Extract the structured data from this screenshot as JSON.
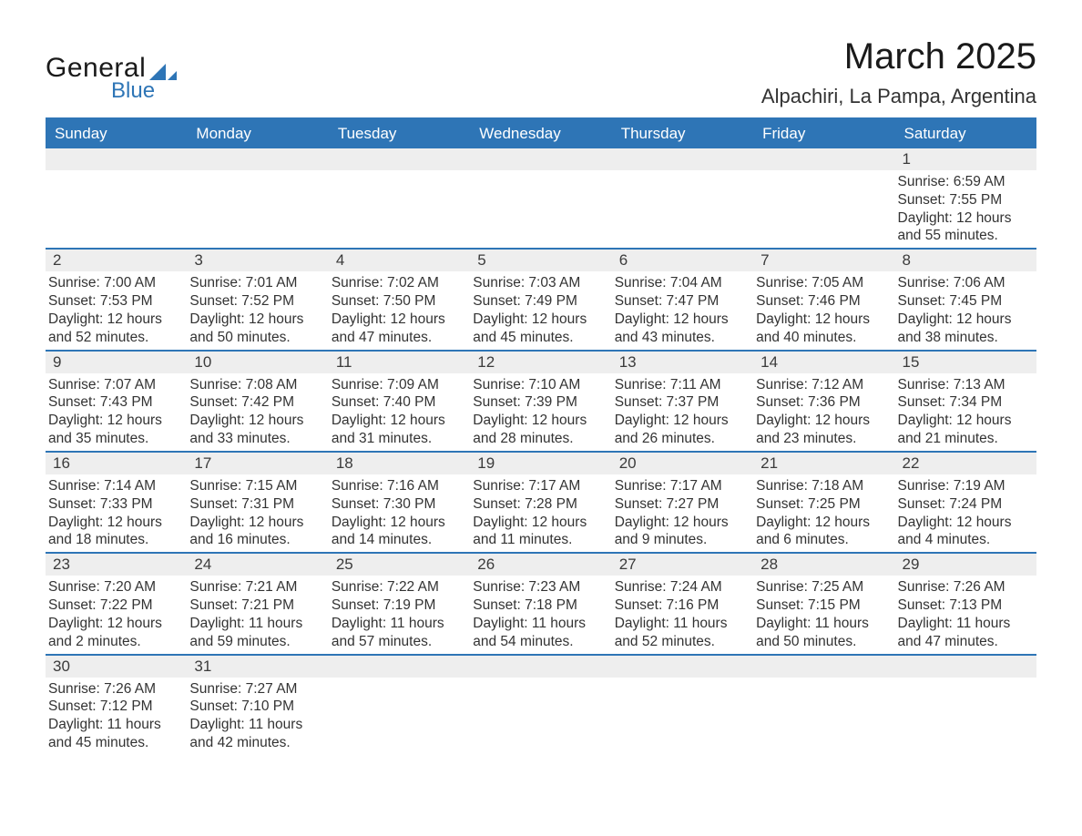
{
  "logo": {
    "text_general": "General",
    "text_blue": "Blue",
    "color_general": "#1a1a1a",
    "color_blue": "#2e75b6"
  },
  "header": {
    "month_title": "March 2025",
    "location": "Alpachiri, La Pampa, Argentina"
  },
  "styling": {
    "header_bg": "#2e75b6",
    "header_text": "#ffffff",
    "daynum_bg": "#eeeeee",
    "row_border": "#2e75b6",
    "body_text": "#333333",
    "page_bg": "#ffffff",
    "title_fontsize": 40,
    "location_fontsize": 22,
    "weekday_fontsize": 17,
    "body_fontsize": 15.5
  },
  "weekdays": [
    "Sunday",
    "Monday",
    "Tuesday",
    "Wednesday",
    "Thursday",
    "Friday",
    "Saturday"
  ],
  "weeks": [
    [
      {
        "empty": true
      },
      {
        "empty": true
      },
      {
        "empty": true
      },
      {
        "empty": true
      },
      {
        "empty": true
      },
      {
        "empty": true
      },
      {
        "num": "1",
        "sunrise": "Sunrise: 6:59 AM",
        "sunset": "Sunset: 7:55 PM",
        "daylight": "Daylight: 12 hours and 55 minutes."
      }
    ],
    [
      {
        "num": "2",
        "sunrise": "Sunrise: 7:00 AM",
        "sunset": "Sunset: 7:53 PM",
        "daylight": "Daylight: 12 hours and 52 minutes."
      },
      {
        "num": "3",
        "sunrise": "Sunrise: 7:01 AM",
        "sunset": "Sunset: 7:52 PM",
        "daylight": "Daylight: 12 hours and 50 minutes."
      },
      {
        "num": "4",
        "sunrise": "Sunrise: 7:02 AM",
        "sunset": "Sunset: 7:50 PM",
        "daylight": "Daylight: 12 hours and 47 minutes."
      },
      {
        "num": "5",
        "sunrise": "Sunrise: 7:03 AM",
        "sunset": "Sunset: 7:49 PM",
        "daylight": "Daylight: 12 hours and 45 minutes."
      },
      {
        "num": "6",
        "sunrise": "Sunrise: 7:04 AM",
        "sunset": "Sunset: 7:47 PM",
        "daylight": "Daylight: 12 hours and 43 minutes."
      },
      {
        "num": "7",
        "sunrise": "Sunrise: 7:05 AM",
        "sunset": "Sunset: 7:46 PM",
        "daylight": "Daylight: 12 hours and 40 minutes."
      },
      {
        "num": "8",
        "sunrise": "Sunrise: 7:06 AM",
        "sunset": "Sunset: 7:45 PM",
        "daylight": "Daylight: 12 hours and 38 minutes."
      }
    ],
    [
      {
        "num": "9",
        "sunrise": "Sunrise: 7:07 AM",
        "sunset": "Sunset: 7:43 PM",
        "daylight": "Daylight: 12 hours and 35 minutes."
      },
      {
        "num": "10",
        "sunrise": "Sunrise: 7:08 AM",
        "sunset": "Sunset: 7:42 PM",
        "daylight": "Daylight: 12 hours and 33 minutes."
      },
      {
        "num": "11",
        "sunrise": "Sunrise: 7:09 AM",
        "sunset": "Sunset: 7:40 PM",
        "daylight": "Daylight: 12 hours and 31 minutes."
      },
      {
        "num": "12",
        "sunrise": "Sunrise: 7:10 AM",
        "sunset": "Sunset: 7:39 PM",
        "daylight": "Daylight: 12 hours and 28 minutes."
      },
      {
        "num": "13",
        "sunrise": "Sunrise: 7:11 AM",
        "sunset": "Sunset: 7:37 PM",
        "daylight": "Daylight: 12 hours and 26 minutes."
      },
      {
        "num": "14",
        "sunrise": "Sunrise: 7:12 AM",
        "sunset": "Sunset: 7:36 PM",
        "daylight": "Daylight: 12 hours and 23 minutes."
      },
      {
        "num": "15",
        "sunrise": "Sunrise: 7:13 AM",
        "sunset": "Sunset: 7:34 PM",
        "daylight": "Daylight: 12 hours and 21 minutes."
      }
    ],
    [
      {
        "num": "16",
        "sunrise": "Sunrise: 7:14 AM",
        "sunset": "Sunset: 7:33 PM",
        "daylight": "Daylight: 12 hours and 18 minutes."
      },
      {
        "num": "17",
        "sunrise": "Sunrise: 7:15 AM",
        "sunset": "Sunset: 7:31 PM",
        "daylight": "Daylight: 12 hours and 16 minutes."
      },
      {
        "num": "18",
        "sunrise": "Sunrise: 7:16 AM",
        "sunset": "Sunset: 7:30 PM",
        "daylight": "Daylight: 12 hours and 14 minutes."
      },
      {
        "num": "19",
        "sunrise": "Sunrise: 7:17 AM",
        "sunset": "Sunset: 7:28 PM",
        "daylight": "Daylight: 12 hours and 11 minutes."
      },
      {
        "num": "20",
        "sunrise": "Sunrise: 7:17 AM",
        "sunset": "Sunset: 7:27 PM",
        "daylight": "Daylight: 12 hours and 9 minutes."
      },
      {
        "num": "21",
        "sunrise": "Sunrise: 7:18 AM",
        "sunset": "Sunset: 7:25 PM",
        "daylight": "Daylight: 12 hours and 6 minutes."
      },
      {
        "num": "22",
        "sunrise": "Sunrise: 7:19 AM",
        "sunset": "Sunset: 7:24 PM",
        "daylight": "Daylight: 12 hours and 4 minutes."
      }
    ],
    [
      {
        "num": "23",
        "sunrise": "Sunrise: 7:20 AM",
        "sunset": "Sunset: 7:22 PM",
        "daylight": "Daylight: 12 hours and 2 minutes."
      },
      {
        "num": "24",
        "sunrise": "Sunrise: 7:21 AM",
        "sunset": "Sunset: 7:21 PM",
        "daylight": "Daylight: 11 hours and 59 minutes."
      },
      {
        "num": "25",
        "sunrise": "Sunrise: 7:22 AM",
        "sunset": "Sunset: 7:19 PM",
        "daylight": "Daylight: 11 hours and 57 minutes."
      },
      {
        "num": "26",
        "sunrise": "Sunrise: 7:23 AM",
        "sunset": "Sunset: 7:18 PM",
        "daylight": "Daylight: 11 hours and 54 minutes."
      },
      {
        "num": "27",
        "sunrise": "Sunrise: 7:24 AM",
        "sunset": "Sunset: 7:16 PM",
        "daylight": "Daylight: 11 hours and 52 minutes."
      },
      {
        "num": "28",
        "sunrise": "Sunrise: 7:25 AM",
        "sunset": "Sunset: 7:15 PM",
        "daylight": "Daylight: 11 hours and 50 minutes."
      },
      {
        "num": "29",
        "sunrise": "Sunrise: 7:26 AM",
        "sunset": "Sunset: 7:13 PM",
        "daylight": "Daylight: 11 hours and 47 minutes."
      }
    ],
    [
      {
        "num": "30",
        "sunrise": "Sunrise: 7:26 AM",
        "sunset": "Sunset: 7:12 PM",
        "daylight": "Daylight: 11 hours and 45 minutes."
      },
      {
        "num": "31",
        "sunrise": "Sunrise: 7:27 AM",
        "sunset": "Sunset: 7:10 PM",
        "daylight": "Daylight: 11 hours and 42 minutes."
      },
      {
        "empty": true
      },
      {
        "empty": true
      },
      {
        "empty": true
      },
      {
        "empty": true
      },
      {
        "empty": true
      }
    ]
  ]
}
